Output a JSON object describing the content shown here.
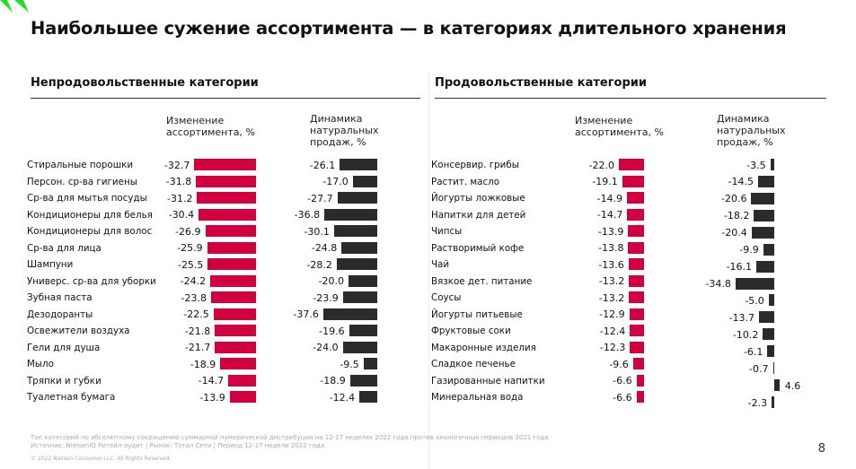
{
  "title": "Наибольшее сужение ассортимента — в категориях длительного хранения",
  "colors": {
    "assortment": "#d3003f",
    "sales": "#2b2b2b",
    "logo": "#22dd22"
  },
  "chart_data": [
    {
      "type": "bar",
      "orientation": "horizontal",
      "title": "Непродовольственные категории",
      "categories": [
        "Стиральные порошки",
        "Персон. ср-ва гигиены",
        "Ср-ва для мытья посуды",
        "Кондиционеры для белья",
        "Кондиционеры для волос",
        "Ср-ва для лица",
        "Шампуни",
        "Универс. ср-ва для уборки",
        "Зубная паста",
        "Дезодоранты",
        "Освежители воздуха",
        "Гели для душа",
        "Мыло",
        "Тряпки и губки",
        "Туалетная бумага"
      ],
      "series": [
        {
          "name": "Изменение ассортимента, %",
          "values": [
            -32.7,
            -31.8,
            -31.2,
            -30.4,
            -26.9,
            -25.9,
            -25.5,
            -24.2,
            -23.8,
            -22.5,
            -21.8,
            -21.7,
            -18.9,
            -14.7,
            -13.9
          ]
        },
        {
          "name": "Динамика натуральных продаж, %",
          "values": [
            -26.1,
            -17.0,
            -27.7,
            -36.8,
            -30.1,
            -24.8,
            -28.2,
            -20.0,
            -23.9,
            -37.6,
            -19.6,
            -24.0,
            -9.5,
            -18.9,
            -12.4
          ]
        }
      ]
    },
    {
      "type": "bar",
      "orientation": "horizontal",
      "title": "Продовольственные категории",
      "categories": [
        "Консервир. грибы",
        "Растит. масло",
        "Йогурты ложковые",
        "Напитки для детей",
        "Чипсы",
        "Растворимый кофе",
        "Чай",
        "Вязкое дет. питание",
        "Соусы",
        "Йогурты питьевые",
        "Фруктовые соки",
        "Макаронные изделия",
        "Сладкое печенье",
        "Газированные напитки",
        "Минеральная вода"
      ],
      "series": [
        {
          "name": "Изменение ассортимента, %",
          "values": [
            -22.0,
            -19.1,
            -14.9,
            -14.7,
            -13.9,
            -13.8,
            -13.6,
            -13.2,
            -13.2,
            -12.9,
            -12.4,
            -12.3,
            -9.6,
            -6.6,
            -6.6
          ]
        },
        {
          "name": "Динамика натуральных продаж, %",
          "values": [
            -3.5,
            -14.5,
            -20.6,
            -18.2,
            -20.4,
            -9.9,
            -16.1,
            -34.8,
            -5.0,
            -13.7,
            -10.2,
            -6.1,
            -0.7,
            4.6,
            -2.3
          ]
        }
      ]
    }
  ],
  "headers": {
    "assortment": "Изменение ассортимента, %",
    "sales": "Динамика натуральных продаж, %"
  },
  "footer": {
    "note": "Топ категорий по абсолютному сокращению суммарной нумерической дистрибуции на 12-17 неделях 2022 года против аналогичных периодов 2021 года",
    "source": "Источник: NielsenIQ Ритейл-аудит | Рынок: Тотал Сети |   Период 12-17 недели 2022 года",
    "copyright": "© 2022 Nielsen Consumer LLC. All Rights Reserved."
  },
  "page_number": "8"
}
